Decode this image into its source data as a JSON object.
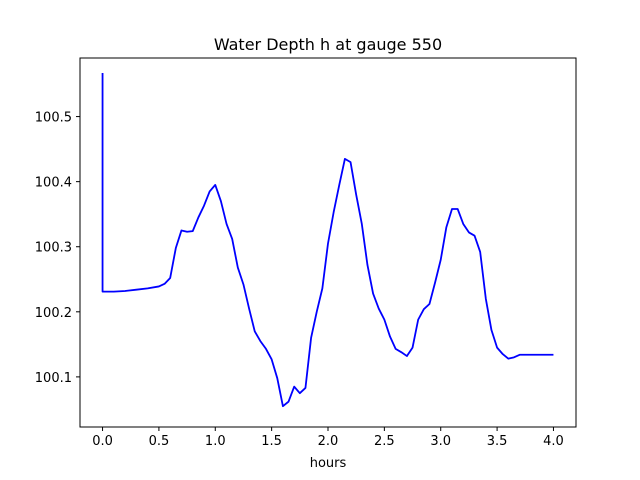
{
  "chart_data": {
    "type": "line",
    "title": "Water Depth h at gauge 550",
    "xlabel": "hours",
    "ylabel": "",
    "xlim": [
      -0.2,
      4.2
    ],
    "ylim": [
      100.023,
      100.59
    ],
    "grid": false,
    "legend": "none",
    "xticks": [
      0.0,
      0.5,
      1.0,
      1.5,
      2.0,
      2.5,
      3.0,
      3.5,
      4.0
    ],
    "xtick_labels": [
      "0.0",
      "0.5",
      "1.0",
      "1.5",
      "2.0",
      "2.5",
      "3.0",
      "3.5",
      "4.0"
    ],
    "yticks": [
      100.1,
      100.2,
      100.3,
      100.4,
      100.5
    ],
    "ytick_labels": [
      "100.1",
      "100.2",
      "100.3",
      "100.4",
      "100.5"
    ],
    "series": [
      {
        "color": "#0000ff",
        "x": [
          0.0,
          0.0,
          0.0,
          0.1,
          0.2,
          0.3,
          0.4,
          0.5,
          0.55,
          0.6,
          0.65,
          0.7,
          0.75,
          0.8,
          0.85,
          0.9,
          0.95,
          1.0,
          1.05,
          1.1,
          1.15,
          1.2,
          1.25,
          1.3,
          1.35,
          1.4,
          1.45,
          1.5,
          1.55,
          1.6,
          1.65,
          1.7,
          1.75,
          1.8,
          1.85,
          1.9,
          1.95,
          2.0,
          2.05,
          2.1,
          2.15,
          2.2,
          2.25,
          2.3,
          2.35,
          2.4,
          2.45,
          2.5,
          2.55,
          2.6,
          2.65,
          2.7,
          2.75,
          2.8,
          2.85,
          2.9,
          2.95,
          3.0,
          3.05,
          3.1,
          3.15,
          3.2,
          3.25,
          3.3,
          3.35,
          3.4,
          3.45,
          3.5,
          3.55,
          3.6,
          3.65,
          3.7,
          3.75,
          3.8,
          3.85,
          3.9,
          3.95,
          4.0
        ],
        "y": [
          100.567,
          100.4,
          100.231,
          100.231,
          100.232,
          100.234,
          100.236,
          100.239,
          100.243,
          100.252,
          100.298,
          100.325,
          100.323,
          100.324,
          100.345,
          100.363,
          100.385,
          100.395,
          100.37,
          100.335,
          100.312,
          100.268,
          100.242,
          100.205,
          100.17,
          100.155,
          100.143,
          100.127,
          100.098,
          100.055,
          100.062,
          100.085,
          100.075,
          100.083,
          100.16,
          100.2,
          100.236,
          100.305,
          100.353,
          100.395,
          100.435,
          100.43,
          100.38,
          100.335,
          100.272,
          100.228,
          100.205,
          100.188,
          100.162,
          100.143,
          100.138,
          100.132,
          100.145,
          100.188,
          100.204,
          100.212,
          100.245,
          100.28,
          100.33,
          100.358,
          100.358,
          100.335,
          100.322,
          100.317,
          100.292,
          100.22,
          100.172,
          100.145,
          100.135,
          100.128,
          100.13,
          100.134,
          100.134,
          100.134,
          100.134,
          100.134,
          100.134,
          100.134
        ]
      }
    ]
  }
}
